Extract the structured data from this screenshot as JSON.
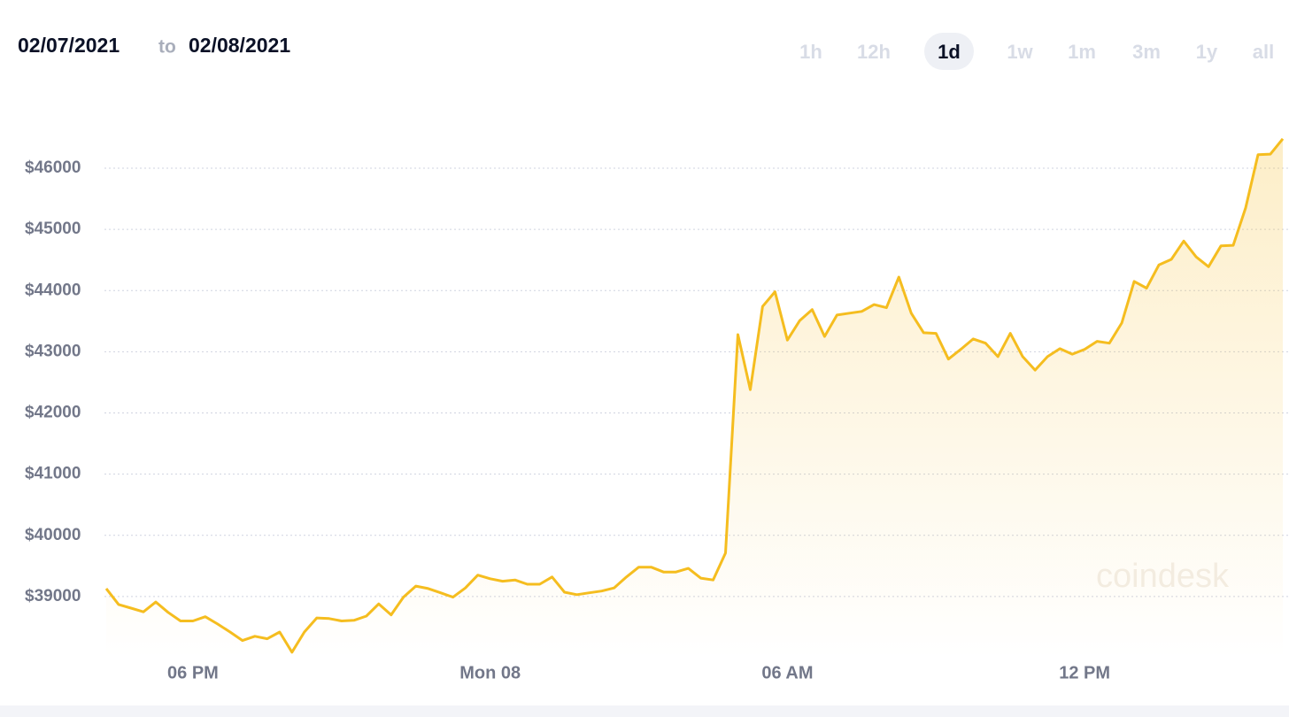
{
  "header": {
    "date_from": "02/07/2021",
    "separator": "to",
    "date_to": "02/08/2021",
    "range_options": [
      "1h",
      "12h",
      "1d",
      "1w",
      "1m",
      "3m",
      "1y",
      "all"
    ],
    "selected": "1d"
  },
  "watermark": "coindesk",
  "chart_data": {
    "type": "line",
    "color": "#f5bd1f",
    "grid": true,
    "x": [
      16.25,
      16.5,
      16.75,
      17,
      17.25,
      17.5,
      17.75,
      18,
      18.25,
      18.5,
      18.75,
      19,
      19.25,
      19.5,
      19.75,
      20,
      20.25,
      20.5,
      20.75,
      21,
      21.25,
      21.5,
      21.75,
      22,
      22.25,
      22.5,
      22.75,
      23,
      23.25,
      23.5,
      23.75,
      24,
      24.25,
      24.5,
      24.75,
      25,
      25.25,
      25.5,
      25.75,
      26,
      26.25,
      26.5,
      26.75,
      27,
      27.25,
      27.5,
      27.75,
      28,
      28.25,
      28.5,
      28.75,
      29,
      29.25,
      29.5,
      29.75,
      30,
      30.25,
      30.5,
      30.75,
      31,
      31.25,
      31.5,
      31.75,
      32,
      32.25,
      32.5,
      32.75,
      33,
      33.25,
      33.5,
      33.75,
      34,
      34.25,
      34.5,
      34.75,
      35,
      35.25,
      35.5,
      35.75,
      36,
      36.25,
      36.5,
      36.75,
      37,
      37.25,
      37.5,
      37.75,
      38,
      38.25,
      38.5,
      38.75,
      39,
      39.25,
      39.5,
      39.75,
      40
    ],
    "values": [
      39130,
      38870,
      38810,
      38750,
      38910,
      38740,
      38600,
      38600,
      38670,
      38550,
      38420,
      38280,
      38350,
      38310,
      38420,
      38090,
      38420,
      38650,
      38640,
      38600,
      38610,
      38680,
      38880,
      38700,
      38990,
      39170,
      39130,
      39060,
      38990,
      39140,
      39350,
      39290,
      39250,
      39270,
      39200,
      39200,
      39320,
      39070,
      39030,
      39060,
      39090,
      39140,
      39320,
      39480,
      39480,
      39400,
      39400,
      39460,
      39300,
      39270,
      39710,
      43280,
      42380,
      43740,
      43980,
      43190,
      43510,
      43690,
      43250,
      43600,
      43630,
      43660,
      43770,
      43720,
      44220,
      43630,
      43310,
      43300,
      42880,
      43040,
      43210,
      43140,
      42920,
      43300,
      42920,
      42700,
      42920,
      43050,
      42960,
      43040,
      43170,
      43140,
      43470,
      44150,
      44040,
      44420,
      44510,
      44810,
      44550,
      44390,
      44730,
      44740,
      45350,
      46220,
      46230,
      46480
    ],
    "xlim": [
      16.25,
      40
    ],
    "xticks": [
      {
        "value": 18,
        "label": "06 PM"
      },
      {
        "value": 24,
        "label": "Mon 08"
      },
      {
        "value": 30,
        "label": "06 AM"
      },
      {
        "value": 36,
        "label": "12 PM"
      }
    ],
    "ylim": [
      38000,
      46800
    ],
    "yticks": [
      {
        "value": 39000,
        "label": "$39000"
      },
      {
        "value": 40000,
        "label": "$40000"
      },
      {
        "value": 41000,
        "label": "$41000"
      },
      {
        "value": 42000,
        "label": "$42000"
      },
      {
        "value": 43000,
        "label": "$43000"
      },
      {
        "value": 44000,
        "label": "$44000"
      },
      {
        "value": 45000,
        "label": "$45000"
      },
      {
        "value": 46000,
        "label": "$46000"
      }
    ]
  }
}
